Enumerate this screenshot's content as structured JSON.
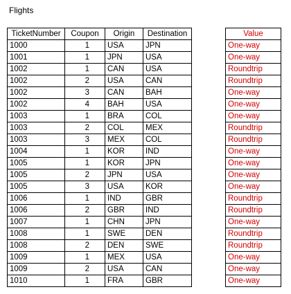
{
  "sheet": {
    "title": "Flights",
    "accent_color": "#d40000",
    "flights_table": {
      "headers": [
        "TicketNumber",
        "Coupon",
        "Origin",
        "Destination"
      ],
      "rows": [
        [
          "1000",
          "1",
          "USA",
          "JPN"
        ],
        [
          "1001",
          "1",
          "JPN",
          "USA"
        ],
        [
          "1002",
          "1",
          "CAN",
          "USA"
        ],
        [
          "1002",
          "2",
          "USA",
          "CAN"
        ],
        [
          "1002",
          "3",
          "CAN",
          "BAH"
        ],
        [
          "1002",
          "4",
          "BAH",
          "USA"
        ],
        [
          "1003",
          "1",
          "BRA",
          "COL"
        ],
        [
          "1003",
          "2",
          "COL",
          "MEX"
        ],
        [
          "1003",
          "3",
          "MEX",
          "COL"
        ],
        [
          "1004",
          "1",
          "KOR",
          "IND"
        ],
        [
          "1005",
          "1",
          "KOR",
          "JPN"
        ],
        [
          "1005",
          "2",
          "JPN",
          "USA"
        ],
        [
          "1005",
          "3",
          "USA",
          "KOR"
        ],
        [
          "1006",
          "1",
          "IND",
          "GBR"
        ],
        [
          "1006",
          "2",
          "GBR",
          "IND"
        ],
        [
          "1007",
          "1",
          "CHN",
          "JPN"
        ],
        [
          "1008",
          "1",
          "SWE",
          "DEN"
        ],
        [
          "1008",
          "2",
          "DEN",
          "SWE"
        ],
        [
          "1009",
          "1",
          "MEX",
          "USA"
        ],
        [
          "1009",
          "2",
          "USA",
          "CAN"
        ],
        [
          "1010",
          "1",
          "FRA",
          "GBR"
        ]
      ]
    },
    "value_table": {
      "header": "Value",
      "values": [
        "One-way",
        "One-way",
        "Roundtrip",
        "Roundtrip",
        "One-way",
        "One-way",
        "One-way",
        "Roundtrip",
        "Roundtrip",
        "One-way",
        "One-way",
        "One-way",
        "One-way",
        "Roundtrip",
        "Roundtrip",
        "One-way",
        "Roundtrip",
        "Roundtrip",
        "One-way",
        "One-way",
        "One-way"
      ]
    }
  }
}
